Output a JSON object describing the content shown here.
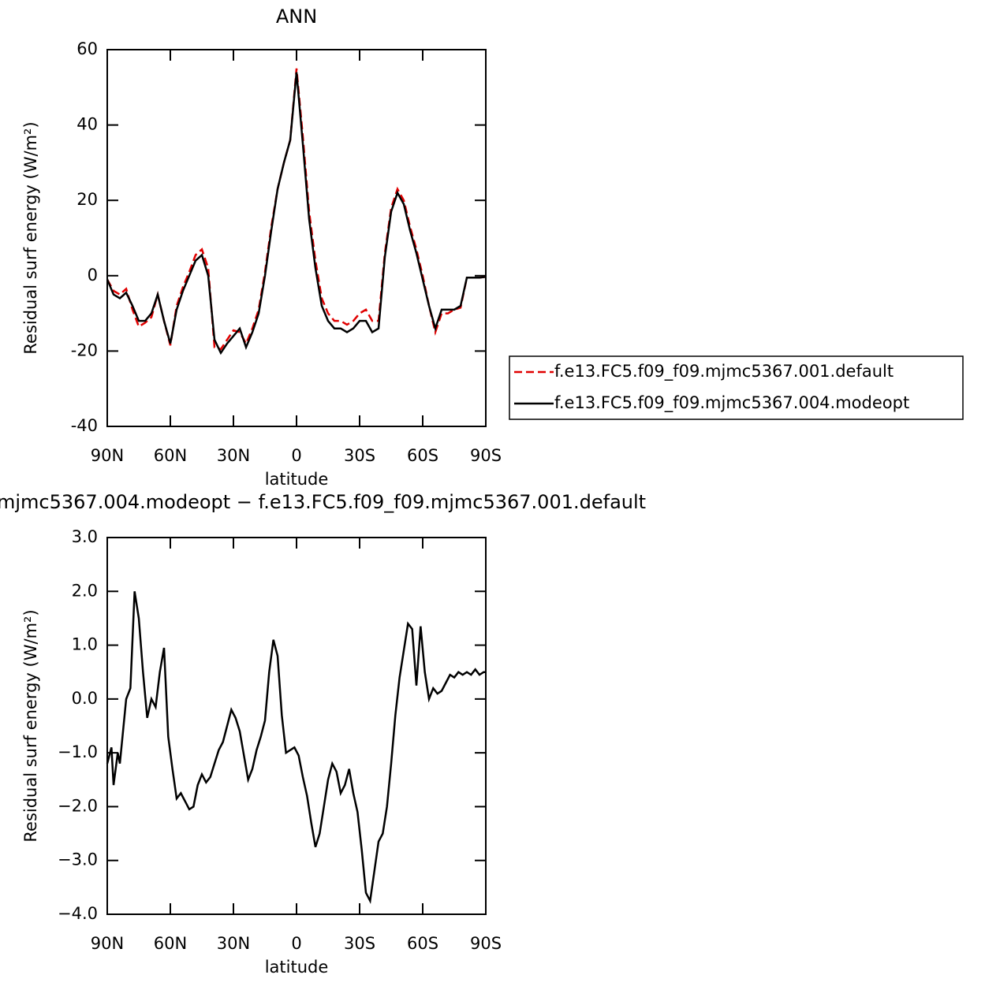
{
  "chart_data": [
    {
      "type": "line",
      "title": "ANN",
      "xlabel": "latitude",
      "ylabel": "Residual surf energy (W/m²)",
      "x": [
        90,
        87,
        84,
        81,
        78,
        75,
        72,
        69,
        66,
        63,
        60,
        57,
        54,
        51,
        48,
        45,
        42,
        39,
        36,
        33,
        30,
        27,
        24,
        21,
        18,
        15,
        12,
        9,
        6,
        3,
        0,
        -3,
        -6,
        -9,
        -12,
        -15,
        -18,
        -21,
        -24,
        -27,
        -30,
        -33,
        -36,
        -39,
        -42,
        -45,
        -48,
        -51,
        -54,
        -57,
        -60,
        -63,
        -66,
        -69,
        -72,
        -75,
        -78,
        -81,
        -84,
        -87,
        -90
      ],
      "xlim": [
        90,
        -90
      ],
      "xticks": [
        {
          "value": 90,
          "label": "90N"
        },
        {
          "value": 60,
          "label": "60N"
        },
        {
          "value": 30,
          "label": "30N"
        },
        0,
        {
          "value": -30,
          "label": "30S"
        },
        {
          "value": -60,
          "label": "60S"
        },
        {
          "value": -90,
          "label": "90S"
        }
      ],
      "ylim": [
        -40,
        60
      ],
      "yticks": [
        -40,
        -20,
        0,
        20,
        40,
        60
      ],
      "series": [
        {
          "name": "f.e13.FC5.f09_f09.mjmc5367.001.default",
          "color": "#e00000",
          "dashed": true,
          "values": [
            -1,
            -4,
            -5,
            -3.5,
            -9,
            -13.5,
            -12.5,
            -11,
            -5,
            -12,
            -18.5,
            -8,
            -3,
            1,
            5.5,
            7,
            2,
            -19,
            -19.5,
            -17,
            -14.5,
            -15,
            -18,
            -14,
            -9,
            1,
            13,
            23,
            30,
            36,
            55,
            37,
            17,
            4,
            -6,
            -10,
            -12,
            -12,
            -13,
            -12,
            -10,
            -9,
            -12,
            -12,
            6,
            18,
            23,
            20,
            13,
            7,
            0,
            -8,
            -15,
            -10,
            -10,
            -9,
            -8.5,
            -0.5,
            -0.5,
            -0.5,
            -0.3
          ]
        },
        {
          "name": "f.e13.FC5.f09_f09.mjmc5367.004.modeopt",
          "color": "#000000",
          "dashed": false,
          "values": [
            -1,
            -5,
            -6,
            -4.5,
            -8,
            -12,
            -12,
            -10,
            -5,
            -12,
            -18,
            -9,
            -4,
            0,
            4,
            5.5,
            0,
            -17,
            -20.5,
            -18,
            -16,
            -14,
            -19,
            -15,
            -10,
            0,
            12,
            23,
            30,
            36,
            54,
            35,
            15,
            2,
            -8,
            -12,
            -14,
            -14,
            -15,
            -14,
            -12,
            -12,
            -15,
            -14,
            5,
            17,
            22,
            19,
            12,
            6,
            -1,
            -8,
            -14,
            -9,
            -9,
            -9,
            -8,
            -0.5,
            -0.5,
            -0.5,
            -0.3
          ]
        }
      ]
    },
    {
      "type": "line",
      "title": "mjmc5367.004.modeopt − f.e13.FC5.f09_f09.mjmc5367.001.default",
      "xlabel": "latitude",
      "ylabel": "Residual surf energy (W/m²)",
      "x": [
        90,
        88,
        87,
        85,
        84,
        81,
        79,
        77,
        75,
        73,
        71,
        69,
        67,
        65,
        63,
        61,
        59,
        57,
        55,
        53,
        51,
        49,
        47,
        45,
        43,
        41,
        39,
        37,
        35,
        33,
        31,
        29,
        27,
        25,
        23,
        21,
        19,
        17,
        15,
        13,
        11,
        9,
        7,
        5,
        3,
        1,
        -1,
        -3,
        -5,
        -7,
        -9,
        -11,
        -13,
        -15,
        -17,
        -19,
        -21,
        -23,
        -25,
        -27,
        -29,
        -31,
        -33,
        -35,
        -37,
        -39,
        -41,
        -43,
        -45,
        -47,
        -49,
        -51,
        -53,
        -55,
        -57,
        -59,
        -61,
        -63,
        -65,
        -67,
        -69,
        -71,
        -73,
        -75,
        -77,
        -79,
        -81,
        -83,
        -85,
        -87,
        -89,
        -90
      ],
      "xlim": [
        90,
        -90
      ],
      "xticks": [
        {
          "value": 90,
          "label": "90N"
        },
        {
          "value": 60,
          "label": "60N"
        },
        {
          "value": 30,
          "label": "30N"
        },
        0,
        {
          "value": -30,
          "label": "30S"
        },
        {
          "value": -60,
          "label": "60S"
        },
        {
          "value": -90,
          "label": "90S"
        }
      ],
      "ylim": [
        -4,
        3
      ],
      "yticks": [
        {
          "value": -4,
          "label": "−4.0"
        },
        {
          "value": -3,
          "label": "−3.0"
        },
        {
          "value": -2,
          "label": "−2.0"
        },
        {
          "value": -1,
          "label": "−1.0"
        },
        {
          "value": 0,
          "label": "0.0"
        },
        {
          "value": 1,
          "label": "1.0"
        },
        {
          "value": 2,
          "label": "2.0"
        },
        {
          "value": 3,
          "label": "3.0"
        }
      ],
      "series": [
        {
          "color": "#000000",
          "dashed": false,
          "values": [
            -1.2,
            -0.9,
            -1.6,
            -1.0,
            -1.2,
            0,
            0.2,
            2.0,
            1.5,
            0.5,
            -0.35,
            0.0,
            -0.15,
            0.5,
            0.95,
            -0.7,
            -1.3,
            -1.85,
            -1.75,
            -1.9,
            -2.05,
            -2.0,
            -1.6,
            -1.4,
            -1.55,
            -1.45,
            -1.2,
            -0.95,
            -0.8,
            -0.5,
            -0.2,
            -0.35,
            -0.6,
            -1.05,
            -1.5,
            -1.3,
            -0.95,
            -0.7,
            -0.4,
            0.5,
            1.1,
            0.8,
            -0.3,
            -1.0,
            -0.95,
            -0.9,
            -1.05,
            -1.45,
            -1.8,
            -2.3,
            -2.75,
            -2.5,
            -2.0,
            -1.5,
            -1.2,
            -1.35,
            -1.75,
            -1.6,
            -1.3,
            -1.75,
            -2.1,
            -2.8,
            -3.6,
            -3.75,
            -3.2,
            -2.65,
            -2.5,
            -2.0,
            -1.2,
            -0.3,
            0.4,
            0.9,
            1.4,
            1.3,
            0.25,
            1.35,
            0.5,
            0.0,
            0.2,
            0.1,
            0.15,
            0.3,
            0.45,
            0.4,
            0.5,
            0.45,
            0.5,
            0.45,
            0.55,
            0.45,
            0.5,
            0.5
          ]
        }
      ]
    }
  ]
}
